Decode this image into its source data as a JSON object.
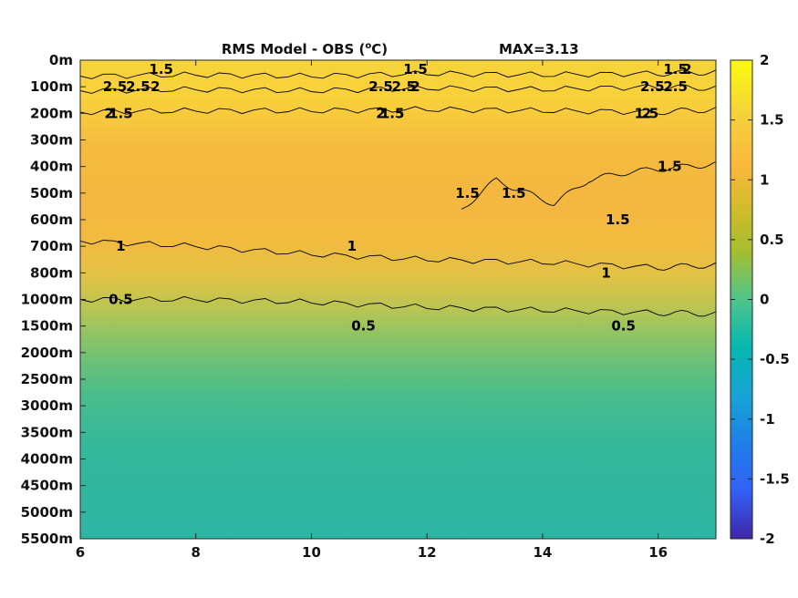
{
  "chart_data": {
    "type": "heatmap",
    "title": "RMS Model - OBS (°C)",
    "title_parts": {
      "prefix": "RMS Model - OBS (",
      "superscript": "o",
      "suffix": "C)"
    },
    "max_label": "MAX=3.13",
    "x_ticks": [
      "6",
      "8",
      "10",
      "12",
      "14",
      "16"
    ],
    "x_tick_values": [
      6,
      8,
      10,
      12,
      14,
      16
    ],
    "xlim": [
      6,
      17
    ],
    "y_ticks": [
      "0m",
      "100m",
      "200m",
      "300m",
      "400m",
      "500m",
      "600m",
      "700m",
      "800m",
      "1000m",
      "1500m",
      "2000m",
      "2500m",
      "3000m",
      "3500m",
      "4000m",
      "4500m",
      "5000m",
      "5500m"
    ],
    "colorbar": {
      "ticks": [
        "2",
        "1.5",
        "1",
        "0.5",
        "0",
        "-0.5",
        "-1",
        "-1.5",
        "-2"
      ],
      "tick_values": [
        2,
        1.5,
        1,
        0.5,
        0,
        -0.5,
        -1,
        -1.5,
        -2
      ],
      "range": [
        -2,
        2
      ],
      "colormap": "parula"
    },
    "depth_profile": {
      "levels": [
        "0m",
        "100m",
        "200m",
        "300m",
        "400m",
        "500m",
        "600m",
        "700m",
        "800m",
        "1000m",
        "1500m",
        "2000m",
        "2500m",
        "3000m",
        "3500m",
        "4000m",
        "4500m",
        "5000m",
        "5500m"
      ],
      "values": [
        2.4,
        2.5,
        1.6,
        1.4,
        1.35,
        1.3,
        1.25,
        1.05,
        0.85,
        0.5,
        0.35,
        0.3,
        0.25,
        0.2,
        0.25,
        0.3,
        0.25,
        0.3,
        0.2
      ]
    },
    "contours": [
      {
        "level": 0.5,
        "label": "0.5",
        "points": [
          [
            6,
            1000
          ],
          [
            8,
            1000
          ],
          [
            10,
            1050
          ],
          [
            12,
            1150
          ],
          [
            14,
            1200
          ],
          [
            16,
            1250
          ],
          [
            17,
            1270
          ]
        ]
      },
      {
        "level": 1,
        "label": "1",
        "points": [
          [
            6,
            680
          ],
          [
            8,
            700
          ],
          [
            10,
            730
          ],
          [
            12,
            750
          ],
          [
            14,
            760
          ],
          [
            16,
            780
          ],
          [
            17,
            770
          ]
        ]
      },
      {
        "level": 1.5,
        "label": "1.5",
        "points": [
          [
            6,
            195
          ],
          [
            8,
            190
          ],
          [
            10,
            190
          ],
          [
            12,
            185
          ],
          [
            14,
            190
          ],
          [
            16,
            195
          ],
          [
            17,
            185
          ]
        ]
      },
      {
        "level": 1.5,
        "label": "1.5",
        "points": [
          [
            12.6,
            560
          ],
          [
            13.2,
            450
          ],
          [
            13.5,
            480
          ],
          [
            14.2,
            540
          ],
          [
            14.8,
            450
          ],
          [
            15.5,
            420
          ],
          [
            16.5,
            400
          ],
          [
            17,
            390
          ]
        ]
      },
      {
        "level": 2,
        "label": "2",
        "points": [
          [
            6,
            60
          ],
          [
            8,
            55
          ],
          [
            10,
            60
          ],
          [
            12,
            50
          ],
          [
            14,
            55
          ],
          [
            16,
            50
          ],
          [
            17,
            45
          ]
        ]
      },
      {
        "level": 2.5,
        "label": "2.5",
        "points": [
          [
            6,
            115
          ],
          [
            8,
            110
          ],
          [
            10,
            115
          ],
          [
            12,
            105
          ],
          [
            14,
            110
          ],
          [
            16,
            100
          ],
          [
            17,
            105
          ]
        ]
      }
    ],
    "contour_labels": [
      {
        "text": "1.5",
        "x": 7.4,
        "depth": "0m"
      },
      {
        "text": "2",
        "x": 7.3,
        "depth": "100m"
      },
      {
        "text": "2.5",
        "x": 7.0,
        "depth": "100m"
      },
      {
        "text": "2.5",
        "x": 6.6,
        "depth": "100m"
      },
      {
        "text": "2",
        "x": 6.5,
        "depth": "200m"
      },
      {
        "text": "1.5",
        "x": 6.7,
        "depth": "200m"
      },
      {
        "text": "1.5",
        "x": 11.8,
        "depth": "0m"
      },
      {
        "text": "2",
        "x": 11.8,
        "depth": "100m"
      },
      {
        "text": "2.5",
        "x": 11.6,
        "depth": "100m"
      },
      {
        "text": "2.5",
        "x": 11.2,
        "depth": "100m"
      },
      {
        "text": "2",
        "x": 11.2,
        "depth": "200m"
      },
      {
        "text": "1.5",
        "x": 11.4,
        "depth": "200m"
      },
      {
        "text": "1.5",
        "x": 16.3,
        "depth": "0m"
      },
      {
        "text": "2",
        "x": 16.5,
        "depth": "0m"
      },
      {
        "text": "2.5",
        "x": 16.3,
        "depth": "100m"
      },
      {
        "text": "2.5",
        "x": 15.9,
        "depth": "100m"
      },
      {
        "text": "2",
        "x": 15.8,
        "depth": "200m"
      },
      {
        "text": "1.5",
        "x": 15.8,
        "depth": "200m"
      },
      {
        "text": "1.5",
        "x": 16.2,
        "depth": "400m"
      },
      {
        "text": "1.5",
        "x": 12.7,
        "depth": "500m"
      },
      {
        "text": "1.5",
        "x": 13.5,
        "depth": "500m"
      },
      {
        "text": "1.5",
        "x": 15.3,
        "depth": "600m"
      },
      {
        "text": "1",
        "x": 6.7,
        "depth": "700m"
      },
      {
        "text": "1",
        "x": 10.7,
        "depth": "700m"
      },
      {
        "text": "1",
        "x": 15.1,
        "depth": "800m"
      },
      {
        "text": "0.5",
        "x": 6.7,
        "depth": "1000m"
      },
      {
        "text": "0.5",
        "x": 10.9,
        "depth": "1500m"
      },
      {
        "text": "0.5",
        "x": 15.4,
        "depth": "1500m"
      }
    ]
  }
}
